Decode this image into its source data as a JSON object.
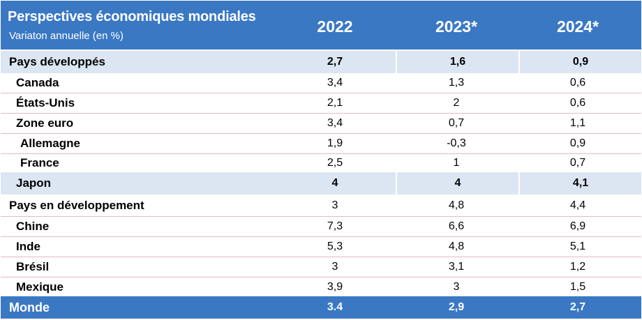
{
  "header": {
    "title": "Perspectives économiques mondiales",
    "subtitle": "Variaton annuelle (en  %)",
    "years": [
      "2022",
      "2023*",
      "2024*"
    ]
  },
  "rows": [
    {
      "label": "Pays développés",
      "values": [
        "2,7",
        "1,6",
        "0,9"
      ]
    },
    {
      "label": "Canada",
      "values": [
        "3,4",
        "1,3",
        "0,6"
      ]
    },
    {
      "label": "États-Unis",
      "values": [
        "2,1",
        "2",
        "0,6"
      ]
    },
    {
      "label": "Zone euro",
      "values": [
        "3,4",
        "0,7",
        "1,1"
      ]
    },
    {
      "label": "Allemagne",
      "values": [
        "1,9",
        "-0,3",
        "0,9"
      ]
    },
    {
      "label": "France",
      "values": [
        "2,5",
        "1",
        "0,7"
      ]
    },
    {
      "label": "Japon",
      "values": [
        "4",
        "4",
        "4,1"
      ]
    },
    {
      "label": "Pays en développement",
      "values": [
        "3",
        "4,8",
        "4,4"
      ]
    },
    {
      "label": "Chine",
      "values": [
        "7,3",
        "6,6",
        "6,9"
      ]
    },
    {
      "label": "Inde",
      "values": [
        "5,3",
        "4,8",
        "5,1"
      ]
    },
    {
      "label": "Brésil",
      "values": [
        "3",
        "3,1",
        "1,2"
      ]
    },
    {
      "label": "Mexique",
      "values": [
        "3,9",
        "3",
        "1,5"
      ]
    },
    {
      "label": "Monde",
      "values": [
        "3.4",
        "2,9",
        "2,7"
      ]
    }
  ],
  "colors": {
    "header_bg": "#3a78c4",
    "shaded_row_bg": "#dce6f2",
    "row_divider": "#e8b7c3"
  }
}
